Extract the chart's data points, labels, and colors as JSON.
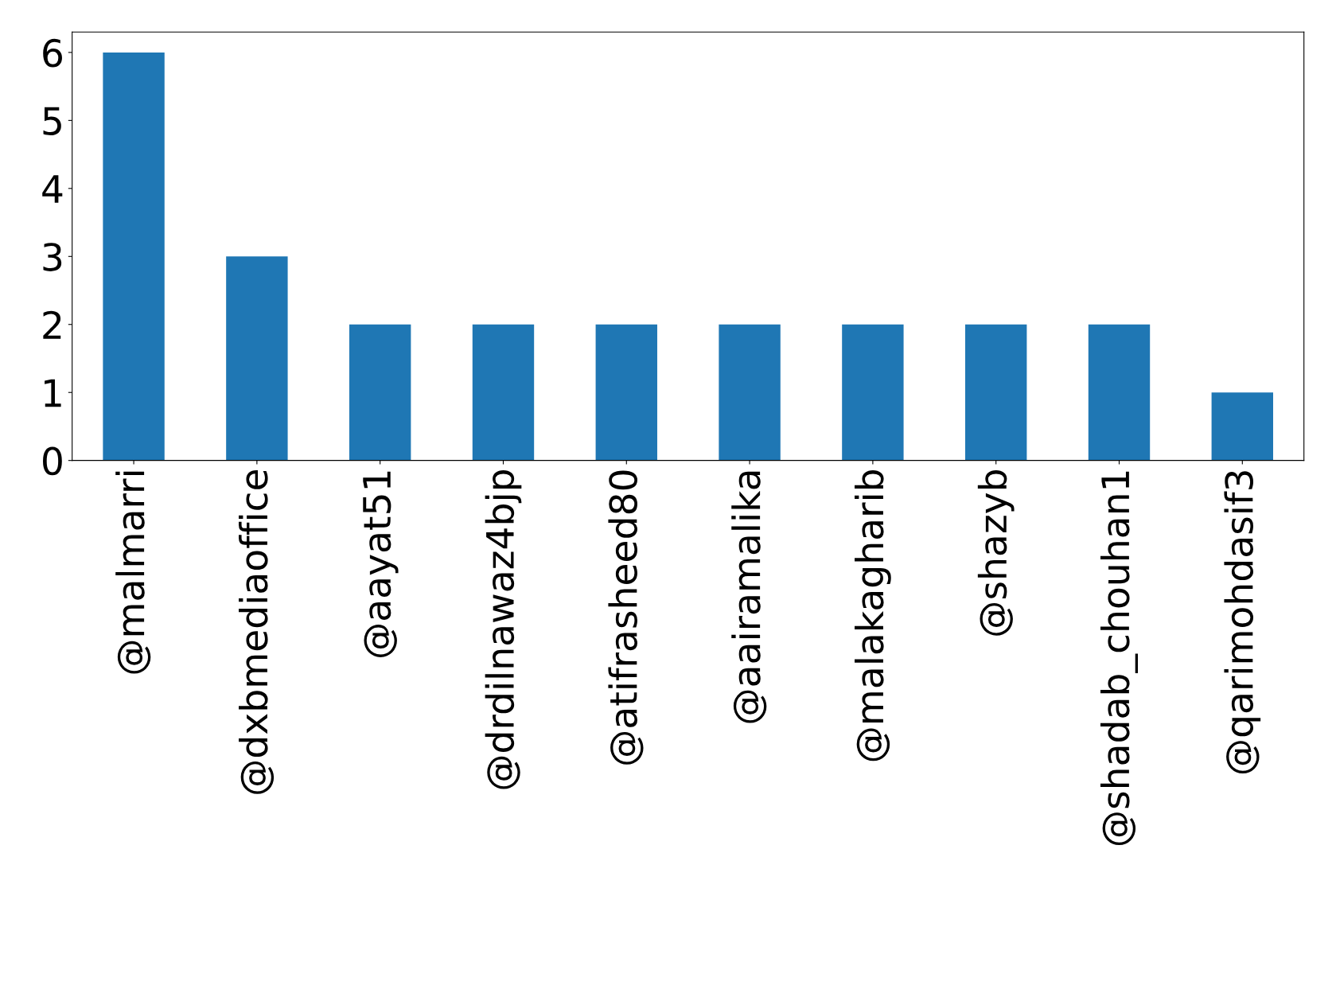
{
  "chart_data": {
    "type": "bar",
    "categories": [
      "@malmarri",
      "@dxbmediaoffice",
      "@aayat51",
      "@drdilnawaz4bjp",
      "@atifrasheed80",
      "@aairamalika",
      "@malakagharib",
      "@shazyb",
      "@shadab_chouhan1",
      "@qarimohdasif3"
    ],
    "values": [
      6,
      3,
      2,
      2,
      2,
      2,
      2,
      2,
      2,
      1
    ],
    "color": "#1f77b4",
    "ylim": [
      0,
      6.3
    ],
    "yticks": [
      0,
      1,
      2,
      3,
      4,
      5,
      6
    ],
    "grid": false,
    "legend": false
  }
}
